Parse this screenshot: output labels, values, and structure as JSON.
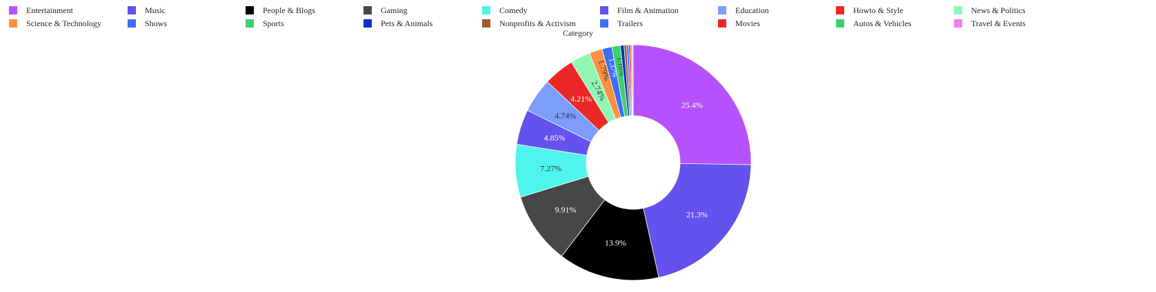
{
  "legend": {
    "title": "Category"
  },
  "chart_data": {
    "type": "pie",
    "hole": true,
    "legend_position": "top",
    "slices": [
      {
        "label": "Entertainment",
        "value": 25.4,
        "color": "#B552FD",
        "text": "25.4%"
      },
      {
        "label": "Music",
        "value": 21.3,
        "color": "#6352EB",
        "text": "21.3%"
      },
      {
        "label": "People & Blogs",
        "value": 13.9,
        "color": "#000000",
        "text": "13.9%"
      },
      {
        "label": "Gaming",
        "value": 9.91,
        "color": "#474747",
        "text": "9.91%"
      },
      {
        "label": "Comedy",
        "value": 7.27,
        "color": "#4FF5EC",
        "text": "7.27%"
      },
      {
        "label": "Film & Animation",
        "value": 4.85,
        "color": "#6352EB",
        "text": "4.85%"
      },
      {
        "label": "Education",
        "value": 4.74,
        "color": "#7C9DFC",
        "text": "4.74%"
      },
      {
        "label": "Howto & Style",
        "value": 4.21,
        "color": "#EB2727",
        "text": "4.21%"
      },
      {
        "label": "News & Politics",
        "value": 2.74,
        "color": "#8FF7B2",
        "text": "2.74%"
      },
      {
        "label": "Science & Technology",
        "value": 1.79,
        "color": "#FD903F",
        "text": "1.79%"
      },
      {
        "label": "Shows",
        "value": 1.37,
        "color": "#3D6EF5",
        "text": "1.37%"
      },
      {
        "label": "Sports",
        "value": 1.16,
        "color": "#3CD16E",
        "text": "1.16%"
      },
      {
        "label": "Pets & Animals",
        "value": 0.5,
        "color": "#0A2FC2",
        "text": ""
      },
      {
        "label": "Nonprofits & Activism",
        "value": 0.35,
        "color": "#A0582D",
        "text": ""
      },
      {
        "label": "Trailers",
        "value": 0.3,
        "color": "#3D6EF5",
        "text": ""
      },
      {
        "label": "Movies",
        "value": 0.25,
        "color": "#EB2727",
        "text": ""
      },
      {
        "label": "Autos & Vehicles",
        "value": 0.2,
        "color": "#3CD16E",
        "text": ""
      },
      {
        "label": "Travel & Events",
        "value": 0.15,
        "color": "#FD7CE1",
        "text": ""
      }
    ]
  }
}
